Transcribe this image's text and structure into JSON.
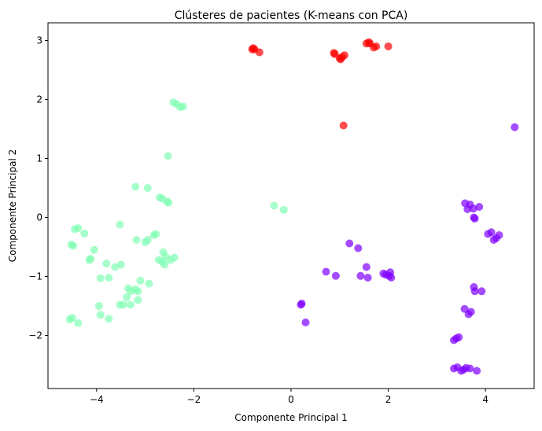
{
  "chart_data": {
    "type": "scatter",
    "title": "Clústeres de pacientes (K-means con PCA)",
    "xlabel": "Componente Principal 1",
    "ylabel": "Componente Principal 2",
    "xlim": [
      -5.0,
      5.0
    ],
    "ylim": [
      -2.9,
      3.3
    ],
    "x_ticks": [
      -4,
      -2,
      0,
      2,
      4
    ],
    "x_tick_labels": [
      "−4",
      "−2",
      "0",
      "2",
      "4"
    ],
    "y_ticks": [
      -2,
      -1,
      0,
      1,
      2,
      3
    ],
    "y_tick_labels": [
      "−2",
      "−1",
      "0",
      "1",
      "2",
      "3"
    ],
    "grid": false,
    "series": [
      {
        "color": "#7f00ff",
        "points": [
          [
            4.6,
            1.53
          ],
          [
            3.58,
            0.24
          ],
          [
            3.68,
            0.22
          ],
          [
            3.75,
            0.15
          ],
          [
            3.87,
            0.18
          ],
          [
            3.63,
            0.14
          ],
          [
            3.78,
            -0.02
          ],
          [
            3.76,
            0.0
          ],
          [
            4.05,
            -0.28
          ],
          [
            4.12,
            -0.25
          ],
          [
            4.22,
            -0.35
          ],
          [
            4.28,
            -0.3
          ],
          [
            4.17,
            -0.38
          ],
          [
            1.2,
            -0.44
          ],
          [
            1.38,
            -0.52
          ],
          [
            0.72,
            -0.92
          ],
          [
            0.92,
            -0.99
          ],
          [
            1.55,
            -0.84
          ],
          [
            1.43,
            -0.99
          ],
          [
            1.58,
            -1.02
          ],
          [
            1.9,
            -0.95
          ],
          [
            1.95,
            -0.97
          ],
          [
            2.04,
            -0.93
          ],
          [
            2.06,
            -1.02
          ],
          [
            2.02,
            -0.99
          ],
          [
            0.22,
            -1.46
          ],
          [
            0.2,
            -1.48
          ],
          [
            0.3,
            -1.78
          ],
          [
            3.76,
            -1.18
          ],
          [
            3.78,
            -1.25
          ],
          [
            3.92,
            -1.25
          ],
          [
            3.57,
            -1.55
          ],
          [
            3.7,
            -1.6
          ],
          [
            3.65,
            -1.64
          ],
          [
            3.4,
            -2.05
          ],
          [
            3.45,
            -2.03
          ],
          [
            3.35,
            -2.08
          ],
          [
            3.35,
            -2.56
          ],
          [
            3.42,
            -2.54
          ],
          [
            3.55,
            -2.58
          ],
          [
            3.6,
            -2.55
          ],
          [
            3.68,
            -2.56
          ],
          [
            3.82,
            -2.6
          ],
          [
            3.5,
            -2.6
          ]
        ]
      },
      {
        "color": "#80ffb4",
        "points": [
          [
            -2.42,
            1.95
          ],
          [
            -2.35,
            1.92
          ],
          [
            -2.28,
            1.87
          ],
          [
            -2.22,
            1.88
          ],
          [
            -2.53,
            1.04
          ],
          [
            -3.2,
            0.52
          ],
          [
            -2.95,
            0.5
          ],
          [
            -2.65,
            0.32
          ],
          [
            -2.7,
            0.34
          ],
          [
            -2.55,
            0.27
          ],
          [
            -2.52,
            0.25
          ],
          [
            -0.35,
            0.2
          ],
          [
            -0.15,
            0.13
          ],
          [
            -4.45,
            -0.2
          ],
          [
            -4.38,
            -0.18
          ],
          [
            -4.25,
            -0.27
          ],
          [
            -3.52,
            -0.12
          ],
          [
            -4.48,
            -0.48
          ],
          [
            -4.52,
            -0.46
          ],
          [
            -4.05,
            -0.55
          ],
          [
            -3.18,
            -0.38
          ],
          [
            -3.0,
            -0.42
          ],
          [
            -2.95,
            -0.38
          ],
          [
            -2.82,
            -0.3
          ],
          [
            -2.78,
            -0.28
          ],
          [
            -2.63,
            -0.59
          ],
          [
            -2.58,
            -0.66
          ],
          [
            -4.12,
            -0.7
          ],
          [
            -4.15,
            -0.72
          ],
          [
            -3.8,
            -0.78
          ],
          [
            -3.62,
            -0.84
          ],
          [
            -3.5,
            -0.8
          ],
          [
            -3.75,
            -1.02
          ],
          [
            -3.92,
            -1.03
          ],
          [
            -2.72,
            -0.72
          ],
          [
            -2.65,
            -0.75
          ],
          [
            -2.6,
            -0.8
          ],
          [
            -2.48,
            -0.72
          ],
          [
            -2.4,
            -0.68
          ],
          [
            -3.35,
            -1.2
          ],
          [
            -3.3,
            -1.25
          ],
          [
            -3.38,
            -1.35
          ],
          [
            -3.2,
            -1.22
          ],
          [
            -3.15,
            -1.25
          ],
          [
            -3.1,
            -1.07
          ],
          [
            -2.92,
            -1.12
          ],
          [
            -3.52,
            -1.48
          ],
          [
            -3.45,
            -1.48
          ],
          [
            -3.3,
            -1.48
          ],
          [
            -3.15,
            -1.4
          ],
          [
            -3.95,
            -1.5
          ],
          [
            -3.92,
            -1.65
          ],
          [
            -3.75,
            -1.72
          ],
          [
            -4.55,
            -1.73
          ],
          [
            -4.5,
            -1.7
          ],
          [
            -4.38,
            -1.79
          ]
        ]
      },
      {
        "color": "#ff0000",
        "points": [
          [
            -0.8,
            2.85
          ],
          [
            -0.78,
            2.87
          ],
          [
            -0.75,
            2.85
          ],
          [
            -0.65,
            2.8
          ],
          [
            0.9,
            2.77
          ],
          [
            0.88,
            2.79
          ],
          [
            1.0,
            2.7
          ],
          [
            1.05,
            2.72
          ],
          [
            1.1,
            2.75
          ],
          [
            1.02,
            2.68
          ],
          [
            1.55,
            2.95
          ],
          [
            1.6,
            2.97
          ],
          [
            1.62,
            2.95
          ],
          [
            1.7,
            2.88
          ],
          [
            1.75,
            2.9
          ],
          [
            2.0,
            2.9
          ],
          [
            1.08,
            1.56
          ]
        ]
      }
    ]
  }
}
